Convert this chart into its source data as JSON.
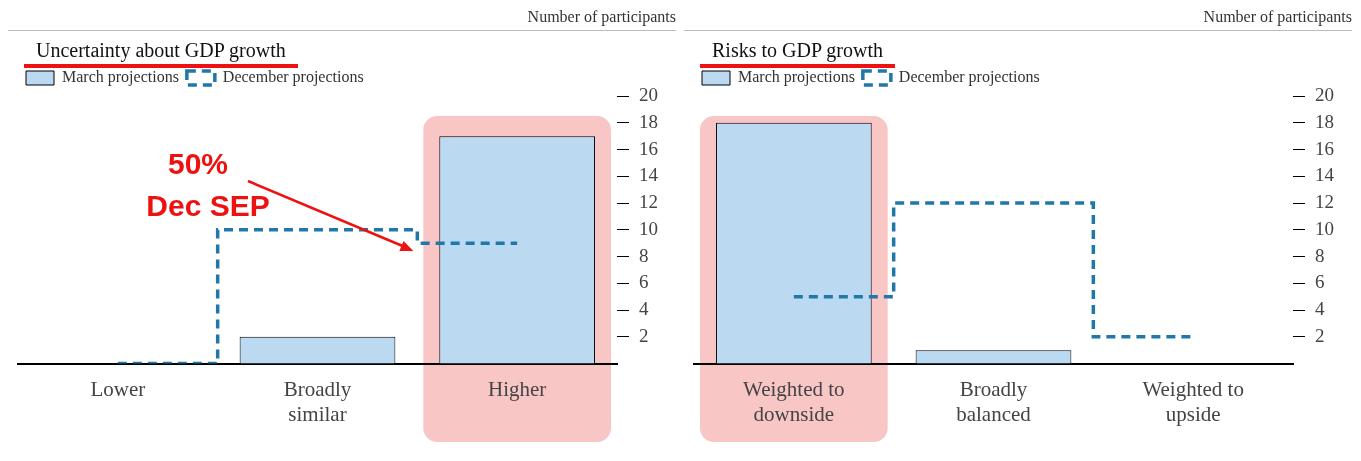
{
  "chart_data": [
    {
      "type": "bar",
      "title": "Uncertainty about GDP growth",
      "ylabel": "Number of participants",
      "categories": [
        "Lower",
        "Broadly similar",
        "Higher"
      ],
      "series": [
        {
          "name": "March projections",
          "color": "#bcd9f2",
          "values": [
            0,
            2,
            17
          ]
        },
        {
          "name": "December projections",
          "type": "step",
          "color": "#1f78a8",
          "line_style": "dashed",
          "values": [
            0,
            10,
            9
          ]
        }
      ],
      "ylim": [
        0,
        20
      ],
      "yticks": [
        2,
        4,
        6,
        8,
        10,
        12,
        14,
        16,
        18,
        20
      ],
      "grid": false,
      "legend": "top left",
      "bands": [
        {
          "axis": "x",
          "from": "Higher",
          "to": "Higher",
          "color": "#f9c6c6"
        }
      ],
      "annotations": [
        "50%\nDec SEP"
      ]
    },
    {
      "type": "bar",
      "title": "Risks to GDP growth",
      "ylabel": "Number of participants",
      "categories": [
        "Weighted to downside",
        "Broadly balanced",
        "Weighted to upside"
      ],
      "series": [
        {
          "name": "March projections",
          "color": "#bcd9f2",
          "values": [
            18,
            1,
            0
          ]
        },
        {
          "name": "December projections",
          "type": "step",
          "color": "#1f78a8",
          "line_style": "dashed",
          "values": [
            5,
            12,
            2
          ]
        }
      ],
      "ylim": [
        0,
        20
      ],
      "yticks": [
        2,
        4,
        6,
        8,
        10,
        12,
        14,
        16,
        18,
        20
      ],
      "grid": false,
      "legend": "top left",
      "bands": [
        {
          "axis": "x",
          "from": "Weighted to downside",
          "to": "Weighted to downside",
          "color": "#f9c6c6"
        }
      ]
    }
  ]
}
